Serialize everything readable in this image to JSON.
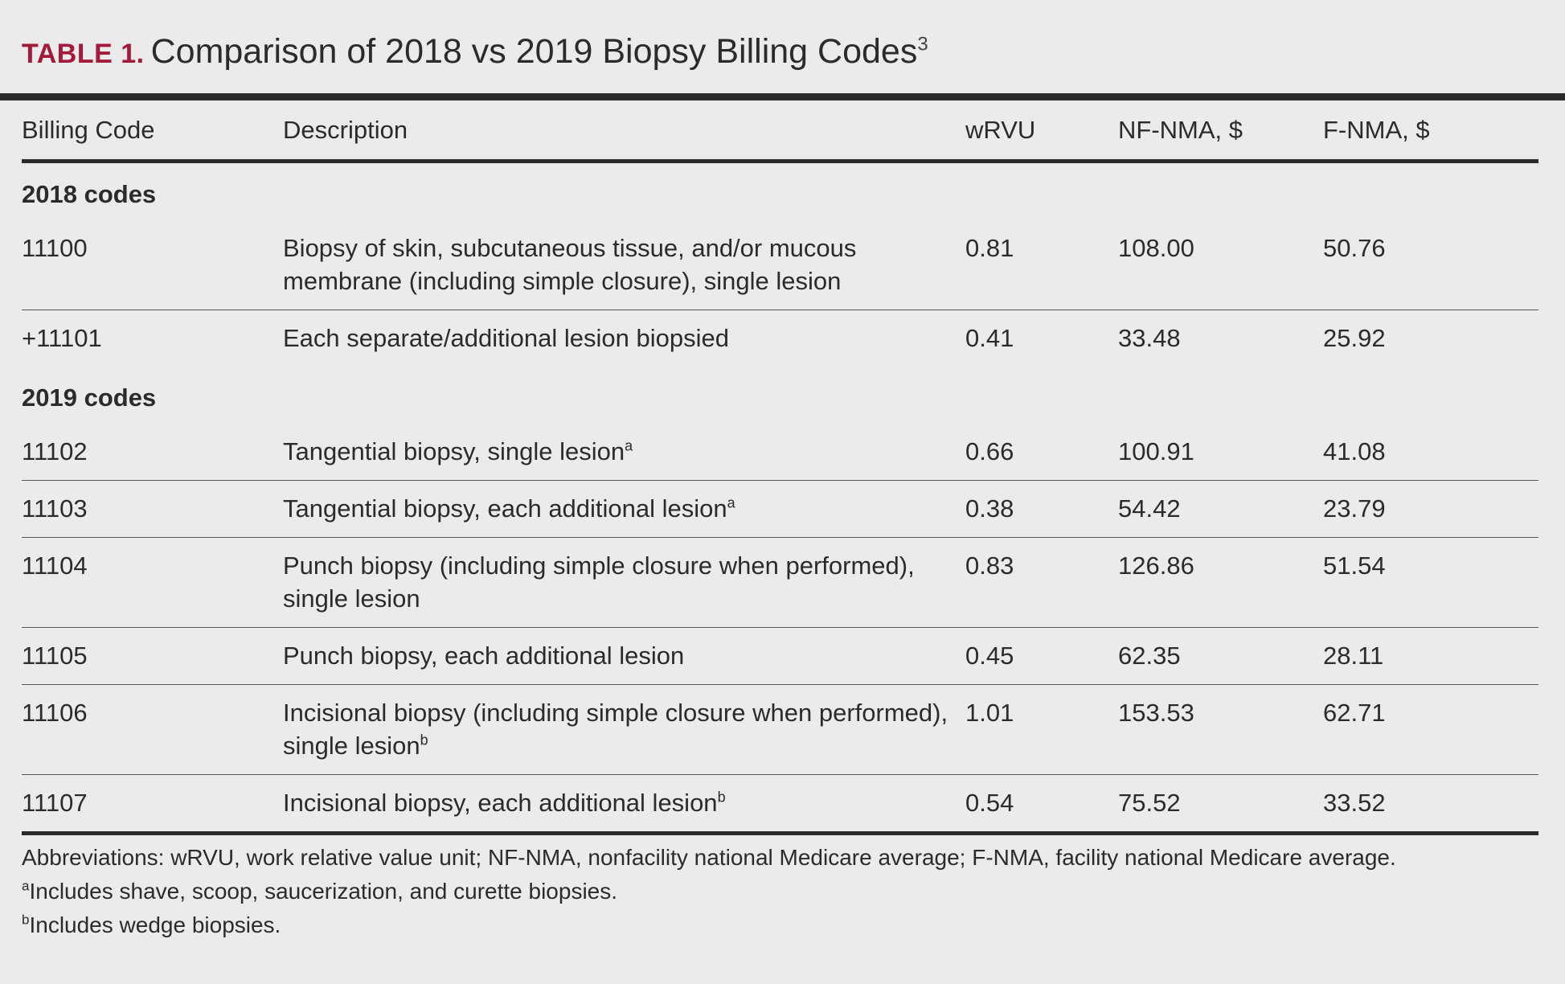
{
  "title": {
    "label": "TABLE 1.",
    "text": "Comparison of 2018 vs 2019 Biopsy Billing Codes",
    "ref": "3"
  },
  "colors": {
    "title_label": "#a31a3a",
    "text": "#2b2b2b",
    "background": "#ebebeb"
  },
  "headers": {
    "code": "Billing Code",
    "description": "Description",
    "wrvu": "wRVU",
    "nf_nma": "NF-NMA, $",
    "f_nma": "F-NMA, $"
  },
  "groups": [
    {
      "label": "2018 codes",
      "rows": [
        {
          "code": "11100",
          "description": "Biopsy of skin, subcutaneous tissue, and/or mucous membrane (including simple closure), single lesion",
          "footnote": "",
          "wrvu": "0.81",
          "nf_nma": "108.00",
          "f_nma": "50.76"
        },
        {
          "code": "+11101",
          "description": "Each separate/additional lesion biopsied",
          "footnote": "",
          "wrvu": "0.41",
          "nf_nma": "33.48",
          "f_nma": "25.92"
        }
      ]
    },
    {
      "label": "2019 codes",
      "rows": [
        {
          "code": "11102",
          "description": "Tangential biopsy, single lesion",
          "footnote": "a",
          "wrvu": "0.66",
          "nf_nma": "100.91",
          "f_nma": "41.08"
        },
        {
          "code": "11103",
          "description": "Tangential biopsy, each additional lesion",
          "footnote": "a",
          "wrvu": "0.38",
          "nf_nma": "54.42",
          "f_nma": "23.79"
        },
        {
          "code": "11104",
          "description": "Punch biopsy (including simple closure when performed), single lesion",
          "footnote": "",
          "wrvu": "0.83",
          "nf_nma": "126.86",
          "f_nma": "51.54"
        },
        {
          "code": "11105",
          "description": "Punch biopsy, each additional lesion",
          "footnote": "",
          "wrvu": "0.45",
          "nf_nma": "62.35",
          "f_nma": "28.11"
        },
        {
          "code": "11106",
          "description": "Incisional biopsy (including simple closure when performed), single lesion",
          "footnote": "b",
          "wrvu": "1.01",
          "nf_nma": "153.53",
          "f_nma": "62.71"
        },
        {
          "code": "11107",
          "description": "Incisional biopsy, each additional lesion",
          "footnote": "b",
          "wrvu": "0.54",
          "nf_nma": "75.52",
          "f_nma": "33.52"
        }
      ]
    }
  ],
  "footnotes": {
    "abbreviations": "Abbreviations: wRVU, work relative value unit; NF-NMA, nonfacility national Medicare average; F-NMA, facility national Medicare average.",
    "a_mark": "a",
    "a_text": "Includes shave, scoop, saucerization, and curette biopsies.",
    "b_mark": "b",
    "b_text": "Includes wedge biopsies."
  }
}
